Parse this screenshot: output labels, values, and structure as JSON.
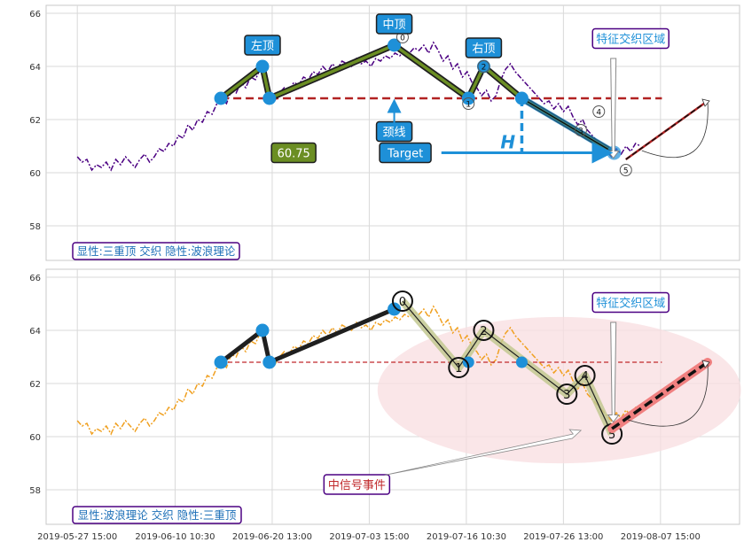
{
  "chart_data": [
    {
      "type": "line",
      "panel": "top",
      "ylim": [
        56.7,
        66.3
      ],
      "yticks": [
        58,
        60,
        62,
        64,
        66
      ],
      "grid": true,
      "colors": {
        "price": "#4b0082",
        "pattern_outline": "#1f1f1f",
        "pattern_fill": "#6b8e23",
        "neckline": "#b22222",
        "marker": "#1e90d8",
        "wave": "#1e90d8",
        "projection": "#b22222"
      },
      "series": [
        {
          "values": [
            60.6,
            60.4,
            60.5,
            60.1,
            60.3,
            60.2,
            60.4,
            60.1,
            60.5,
            60.3,
            60.6,
            60.4,
            60.2,
            60.5,
            60.7,
            60.4,
            60.6,
            60.9,
            60.8,
            61.1,
            61.0,
            61.4,
            61.3,
            61.8,
            61.6,
            62.0,
            61.9,
            62.3,
            62.2,
            62.6,
            62.8,
            62.6,
            63.1,
            63.0,
            63.4,
            63.2,
            63.6,
            63.5,
            63.9,
            63.7,
            62.9,
            62.7,
            63.0,
            63.2,
            63.1,
            63.4,
            63.3,
            63.6,
            63.5,
            63.8,
            63.7,
            64.0,
            63.8,
            64.1,
            63.9,
            64.2,
            64.1,
            64.0,
            64.3,
            64.1,
            64.2,
            64.0,
            64.3,
            64.2,
            64.4,
            64.3,
            64.5,
            64.4,
            64.6,
            64.5,
            64.7,
            64.6,
            64.8,
            64.5,
            64.9,
            64.6,
            64.2,
            64.4,
            63.9,
            64.1,
            63.6,
            63.8,
            63.4,
            63.2,
            62.9,
            63.1,
            62.7,
            62.9,
            63.5,
            63.9,
            64.1,
            63.8,
            63.6,
            63.4,
            63.2,
            63.0,
            62.8,
            62.6,
            62.7,
            62.4,
            62.6,
            62.3,
            62.5,
            62.1,
            61.8,
            62.0,
            61.6,
            61.4,
            61.2,
            61.0,
            60.8,
            60.6,
            60.9,
            60.7,
            61.0,
            60.8,
            61.1,
            61.0
          ]
        }
      ],
      "pattern_points": [
        {
          "x": 0.252,
          "y": 62.8
        },
        {
          "x": 0.312,
          "y": 64.0
        },
        {
          "x": 0.322,
          "y": 62.8
        },
        {
          "x": 0.502,
          "y": 64.8
        },
        {
          "x": 0.609,
          "y": 62.8
        },
        {
          "x": 0.631,
          "y": 64.0
        },
        {
          "x": 0.686,
          "y": 62.8
        },
        {
          "x": 0.819,
          "y": 60.75
        }
      ],
      "wave_points": [
        {
          "label": "0",
          "x": 0.514,
          "y": 65.1
        },
        {
          "label": "1",
          "x": 0.609,
          "y": 62.6
        },
        {
          "label": "2",
          "x": 0.631,
          "y": 64.0
        },
        {
          "label": "3",
          "x": 0.771,
          "y": 61.6
        },
        {
          "label": "4",
          "x": 0.797,
          "y": 62.3
        },
        {
          "label": "5",
          "x": 0.836,
          "y": 60.1
        }
      ],
      "neckline": {
        "y": 62.8,
        "x_start": 0.252,
        "x_end": 0.888
      },
      "projection": {
        "x_start": 0.836,
        "y_start": 60.5,
        "x_end": 1.043,
        "y_end": 62.7
      },
      "annotations": [
        {
          "id": "left_top",
          "text": "左顶",
          "x": 0.312,
          "y": 64.8
        },
        {
          "id": "middle_top",
          "text": "中顶",
          "x": 0.502,
          "y": 65.6
        },
        {
          "id": "right_top",
          "text": "右顶",
          "x": 0.631,
          "y": 64.7
        },
        {
          "id": "neckline_label",
          "text": "颈线",
          "x": 0.502,
          "y": 61.55
        },
        {
          "id": "target_value",
          "text": "60.75",
          "x": 0.357,
          "y": 60.75
        },
        {
          "id": "target_label",
          "text": "Target",
          "x": 0.518,
          "y": 60.75
        },
        {
          "id": "height_label",
          "text": "H",
          "x": 0.666,
          "y": 61.15
        },
        {
          "id": "zone_label",
          "text": "特征交织区域",
          "x": 0.843,
          "y": 65.05
        }
      ],
      "caption": "显性:三重顶 交织 隐性:波浪理论"
    },
    {
      "type": "line",
      "panel": "bottom",
      "ylim": [
        56.7,
        66.3
      ],
      "yticks": [
        58,
        60,
        62,
        64,
        66
      ],
      "grid": true,
      "colors": {
        "price": "#f0a020",
        "pattern_outline": "#1f1f1f",
        "wave_fill": "#c2c890",
        "neckline": "#c0282a",
        "marker": "#1e90d8",
        "projection": "#f08080",
        "ellipse": "#f8dde0"
      },
      "series": [
        {
          "values": [
            60.6,
            60.4,
            60.5,
            60.1,
            60.3,
            60.2,
            60.4,
            60.1,
            60.5,
            60.3,
            60.6,
            60.4,
            60.2,
            60.5,
            60.7,
            60.4,
            60.6,
            60.9,
            60.8,
            61.1,
            61.0,
            61.4,
            61.3,
            61.8,
            61.6,
            62.0,
            61.9,
            62.3,
            62.2,
            62.6,
            62.8,
            62.6,
            63.1,
            63.0,
            63.4,
            63.2,
            63.6,
            63.5,
            63.9,
            63.7,
            62.9,
            62.7,
            63.0,
            63.2,
            63.1,
            63.4,
            63.3,
            63.6,
            63.5,
            63.8,
            63.7,
            64.0,
            63.8,
            64.1,
            63.9,
            64.2,
            64.1,
            64.0,
            64.3,
            64.1,
            64.2,
            64.0,
            64.3,
            64.2,
            64.4,
            64.3,
            64.5,
            64.4,
            64.6,
            64.5,
            64.7,
            64.6,
            64.8,
            64.5,
            64.9,
            64.6,
            64.2,
            64.4,
            63.9,
            64.1,
            63.6,
            63.8,
            63.4,
            63.2,
            62.9,
            63.1,
            62.7,
            62.9,
            63.5,
            63.9,
            64.1,
            63.8,
            63.6,
            63.4,
            63.2,
            63.0,
            62.8,
            62.6,
            62.7,
            62.4,
            62.6,
            62.3,
            62.5,
            62.1,
            61.8,
            62.0,
            61.6,
            61.4,
            61.2,
            61.0,
            60.8,
            60.6,
            60.9,
            60.7,
            61.0,
            60.8,
            61.1,
            61.0
          ]
        }
      ],
      "pattern_points": [
        {
          "x": 0.252,
          "y": 62.8
        },
        {
          "x": 0.312,
          "y": 64.0
        },
        {
          "x": 0.322,
          "y": 62.8
        },
        {
          "x": 0.502,
          "y": 64.8
        }
      ],
      "wave_points": [
        {
          "label": "0",
          "x": 0.514,
          "y": 65.1
        },
        {
          "label": "1",
          "x": 0.595,
          "y": 62.6
        },
        {
          "label": "2",
          "x": 0.631,
          "y": 64.0
        },
        {
          "label": "3",
          "x": 0.751,
          "y": 61.6
        },
        {
          "label": "4",
          "x": 0.777,
          "y": 62.3
        },
        {
          "label": "5",
          "x": 0.816,
          "y": 60.1
        }
      ],
      "neckline": {
        "y": 62.8,
        "x_start": 0.252,
        "x_end": 0.888
      },
      "projection": {
        "x_start": 0.816,
        "y_start": 60.3,
        "x_end": 1.043,
        "y_end": 62.8
      },
      "annotations": [
        {
          "id": "zone_label",
          "text": "特征交织区域",
          "x": 0.843,
          "y": 65.05
        },
        {
          "id": "signal_label",
          "text": "中信号事件",
          "x": 0.448,
          "y": 58.2
        }
      ],
      "caption": "显性:波浪理论 交织 隐性:三重顶"
    }
  ],
  "x_axis": {
    "ticks": [
      "2019-05-27 15:00",
      "2019-06-10 10:30",
      "2019-06-20 13:00",
      "2019-07-03 15:00",
      "2019-07-16 10:30",
      "2019-07-26 13:00",
      "2019-08-07 15:00"
    ]
  }
}
